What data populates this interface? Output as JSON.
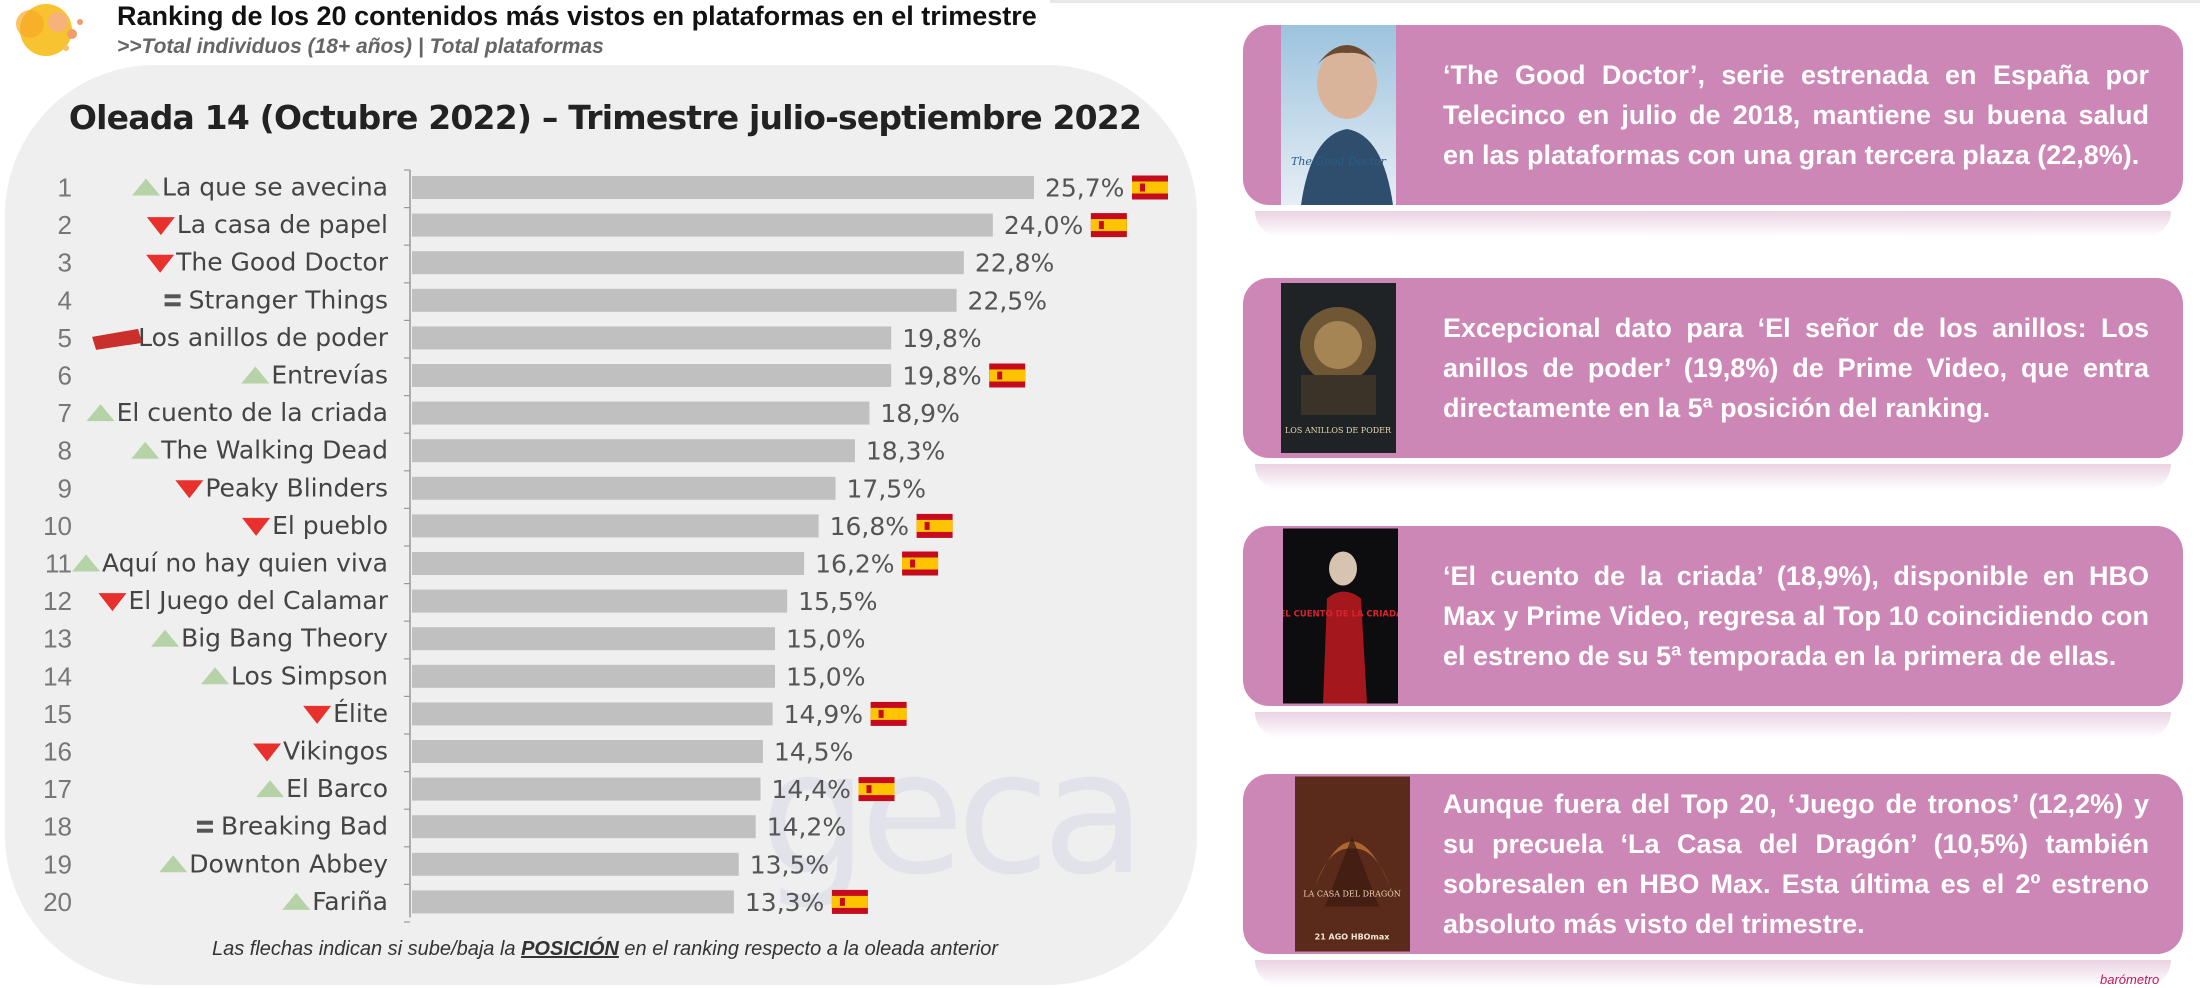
{
  "header": {
    "title": "Ranking de los 20 contenidos más vistos en plataformas en el trimestre",
    "subtitle": ">>Total individuos (18+ años) | Total plataformas"
  },
  "watermark": "geca",
  "note": {
    "pre": "Las flechas indican si sube/baja la ",
    "key": "POSICIÓN",
    "post": " en el ranking respecto a la oleada anterior"
  },
  "colors": {
    "bar": "#c0c0c0",
    "up": "#b5d3a7",
    "down": "#e8302c",
    "card": "#cd87b6",
    "new_badge": "#c9302c"
  },
  "chart_data": {
    "type": "bar",
    "orientation": "horizontal",
    "title": "Oleada 14 (Octubre 2022) – Trimestre julio-septiembre 2022",
    "xlim": [
      0,
      25.7
    ],
    "grid": false,
    "rows": [
      {
        "rank": "1",
        "name": "La que se avecina",
        "value": 25.7,
        "label": "25,7%",
        "trend": "up",
        "spain": true
      },
      {
        "rank": "2",
        "name": "La casa de papel",
        "value": 24.0,
        "label": "24,0%",
        "trend": "down",
        "spain": true
      },
      {
        "rank": "3",
        "name": "The Good Doctor",
        "value": 22.8,
        "label": "22,8%",
        "trend": "down",
        "spain": false
      },
      {
        "rank": "4",
        "name": "Stranger Things",
        "value": 22.5,
        "label": "22,5%",
        "trend": "same",
        "spain": false
      },
      {
        "rank": "5",
        "name": "Los anillos de poder",
        "value": 19.8,
        "label": "19,8%",
        "trend": "new",
        "spain": false
      },
      {
        "rank": "6",
        "name": "Entrevías",
        "value": 19.8,
        "label": "19,8%",
        "trend": "up",
        "spain": true
      },
      {
        "rank": "7",
        "name": "El cuento de la criada",
        "value": 18.9,
        "label": "18,9%",
        "trend": "up",
        "spain": false
      },
      {
        "rank": "8",
        "name": "The Walking Dead",
        "value": 18.3,
        "label": "18,3%",
        "trend": "up",
        "spain": false
      },
      {
        "rank": "9",
        "name": "Peaky Blinders",
        "value": 17.5,
        "label": "17,5%",
        "trend": "down",
        "spain": false
      },
      {
        "rank": "10",
        "name": "El pueblo",
        "value": 16.8,
        "label": "16,8%",
        "trend": "down",
        "spain": true
      },
      {
        "rank": "11",
        "name": "Aquí no hay quien viva",
        "value": 16.2,
        "label": "16,2%",
        "trend": "up",
        "spain": true
      },
      {
        "rank": "12",
        "name": "El Juego del Calamar",
        "value": 15.5,
        "label": "15,5%",
        "trend": "down",
        "spain": false
      },
      {
        "rank": "13",
        "name": "Big Bang Theory",
        "value": 15.0,
        "label": "15,0%",
        "trend": "up",
        "spain": false
      },
      {
        "rank": "14",
        "name": "Los Simpson",
        "value": 15.0,
        "label": "15,0%",
        "trend": "up",
        "spain": false
      },
      {
        "rank": "15",
        "name": "Élite",
        "value": 14.9,
        "label": "14,9%",
        "trend": "down",
        "spain": true
      },
      {
        "rank": "16",
        "name": "Vikingos",
        "value": 14.5,
        "label": "14,5%",
        "trend": "down",
        "spain": false
      },
      {
        "rank": "17",
        "name": "El Barco",
        "value": 14.4,
        "label": "14,4%",
        "trend": "up",
        "spain": true
      },
      {
        "rank": "18",
        "name": "Breaking Bad",
        "value": 14.2,
        "label": "14,2%",
        "trend": "same",
        "spain": false
      },
      {
        "rank": "19",
        "name": "Downton Abbey",
        "value": 13.5,
        "label": "13,5%",
        "trend": "up",
        "spain": false
      },
      {
        "rank": "20",
        "name": "Fariña",
        "value": 13.3,
        "label": "13,3%",
        "trend": "up",
        "spain": true
      }
    ]
  },
  "cards": [
    {
      "text": "‘The Good Doctor’, serie estrenada en España por Telecinco en julio de 2018, mantiene su buena salud en las plataformas con una gran tercera plaza (22,8%).",
      "poster_text": "The Good Doctor"
    },
    {
      "text": "Excepcional dato para ‘El señor de los anillos: Los anillos de poder’ (19,8%) de Prime Video, que entra directamente en la 5ª posición del ranking.",
      "poster_text": "LOS ANILLOS DE PODER"
    },
    {
      "text": "‘El cuento de la criada’ (18,9%), disponible en HBO Max y Prime Video, regresa al Top 10 coincidiendo con el estreno de su 5ª temporada en la primera de ellas.",
      "poster_text": "EL CUENTO DE LA CRIADA"
    },
    {
      "text": "Aunque fuera del Top 20, ‘Juego de tronos’ (12,2%) y su precuela ‘La Casa del Dragón’ (10,5%) también sobresalen en HBO Max. Esta última es el 2º estreno absoluto más visto del trimestre.",
      "poster_text": "LA CASA DEL DRAGÓN",
      "poster_footer": "21 AGO HBOmax"
    }
  ],
  "corner_text": "barómetro"
}
